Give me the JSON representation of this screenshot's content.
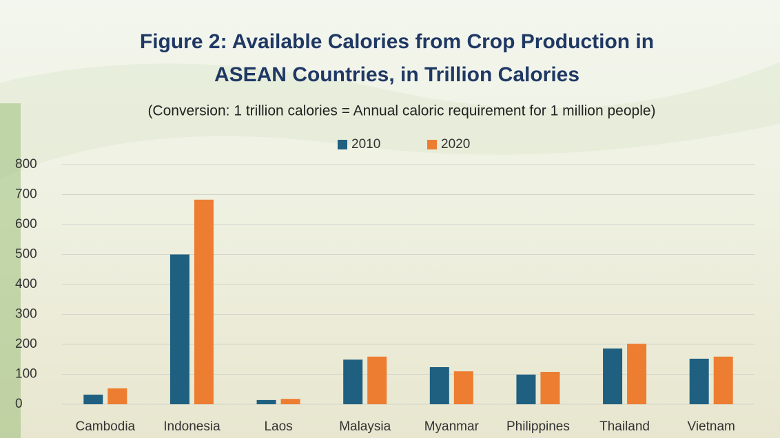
{
  "chart_data": {
    "type": "bar",
    "title": [
      "Figure 2: Available Calories from Crop Production in",
      "ASEAN Countries, in Trillion Calories"
    ],
    "subtitle": "(Conversion: 1 trillion calories = Annual caloric requirement for 1 million people)",
    "categories": [
      "Cambodia",
      "Indonesia",
      "Laos",
      "Malaysia",
      "Myanmar",
      "Philippines",
      "Thailand",
      "Vietnam"
    ],
    "series": [
      {
        "name": "2010",
        "color": "#1f5f80",
        "values": [
          32,
          500,
          14,
          149,
          124,
          99,
          186,
          152
        ]
      },
      {
        "name": "2020",
        "color": "#ed7d31",
        "values": [
          53,
          683,
          18,
          159,
          110,
          108,
          202,
          159
        ]
      }
    ],
    "ylim": [
      0,
      800
    ],
    "yticks": [
      0,
      100,
      200,
      300,
      400,
      500,
      600,
      700,
      800
    ],
    "grid": true,
    "legend": "top"
  }
}
